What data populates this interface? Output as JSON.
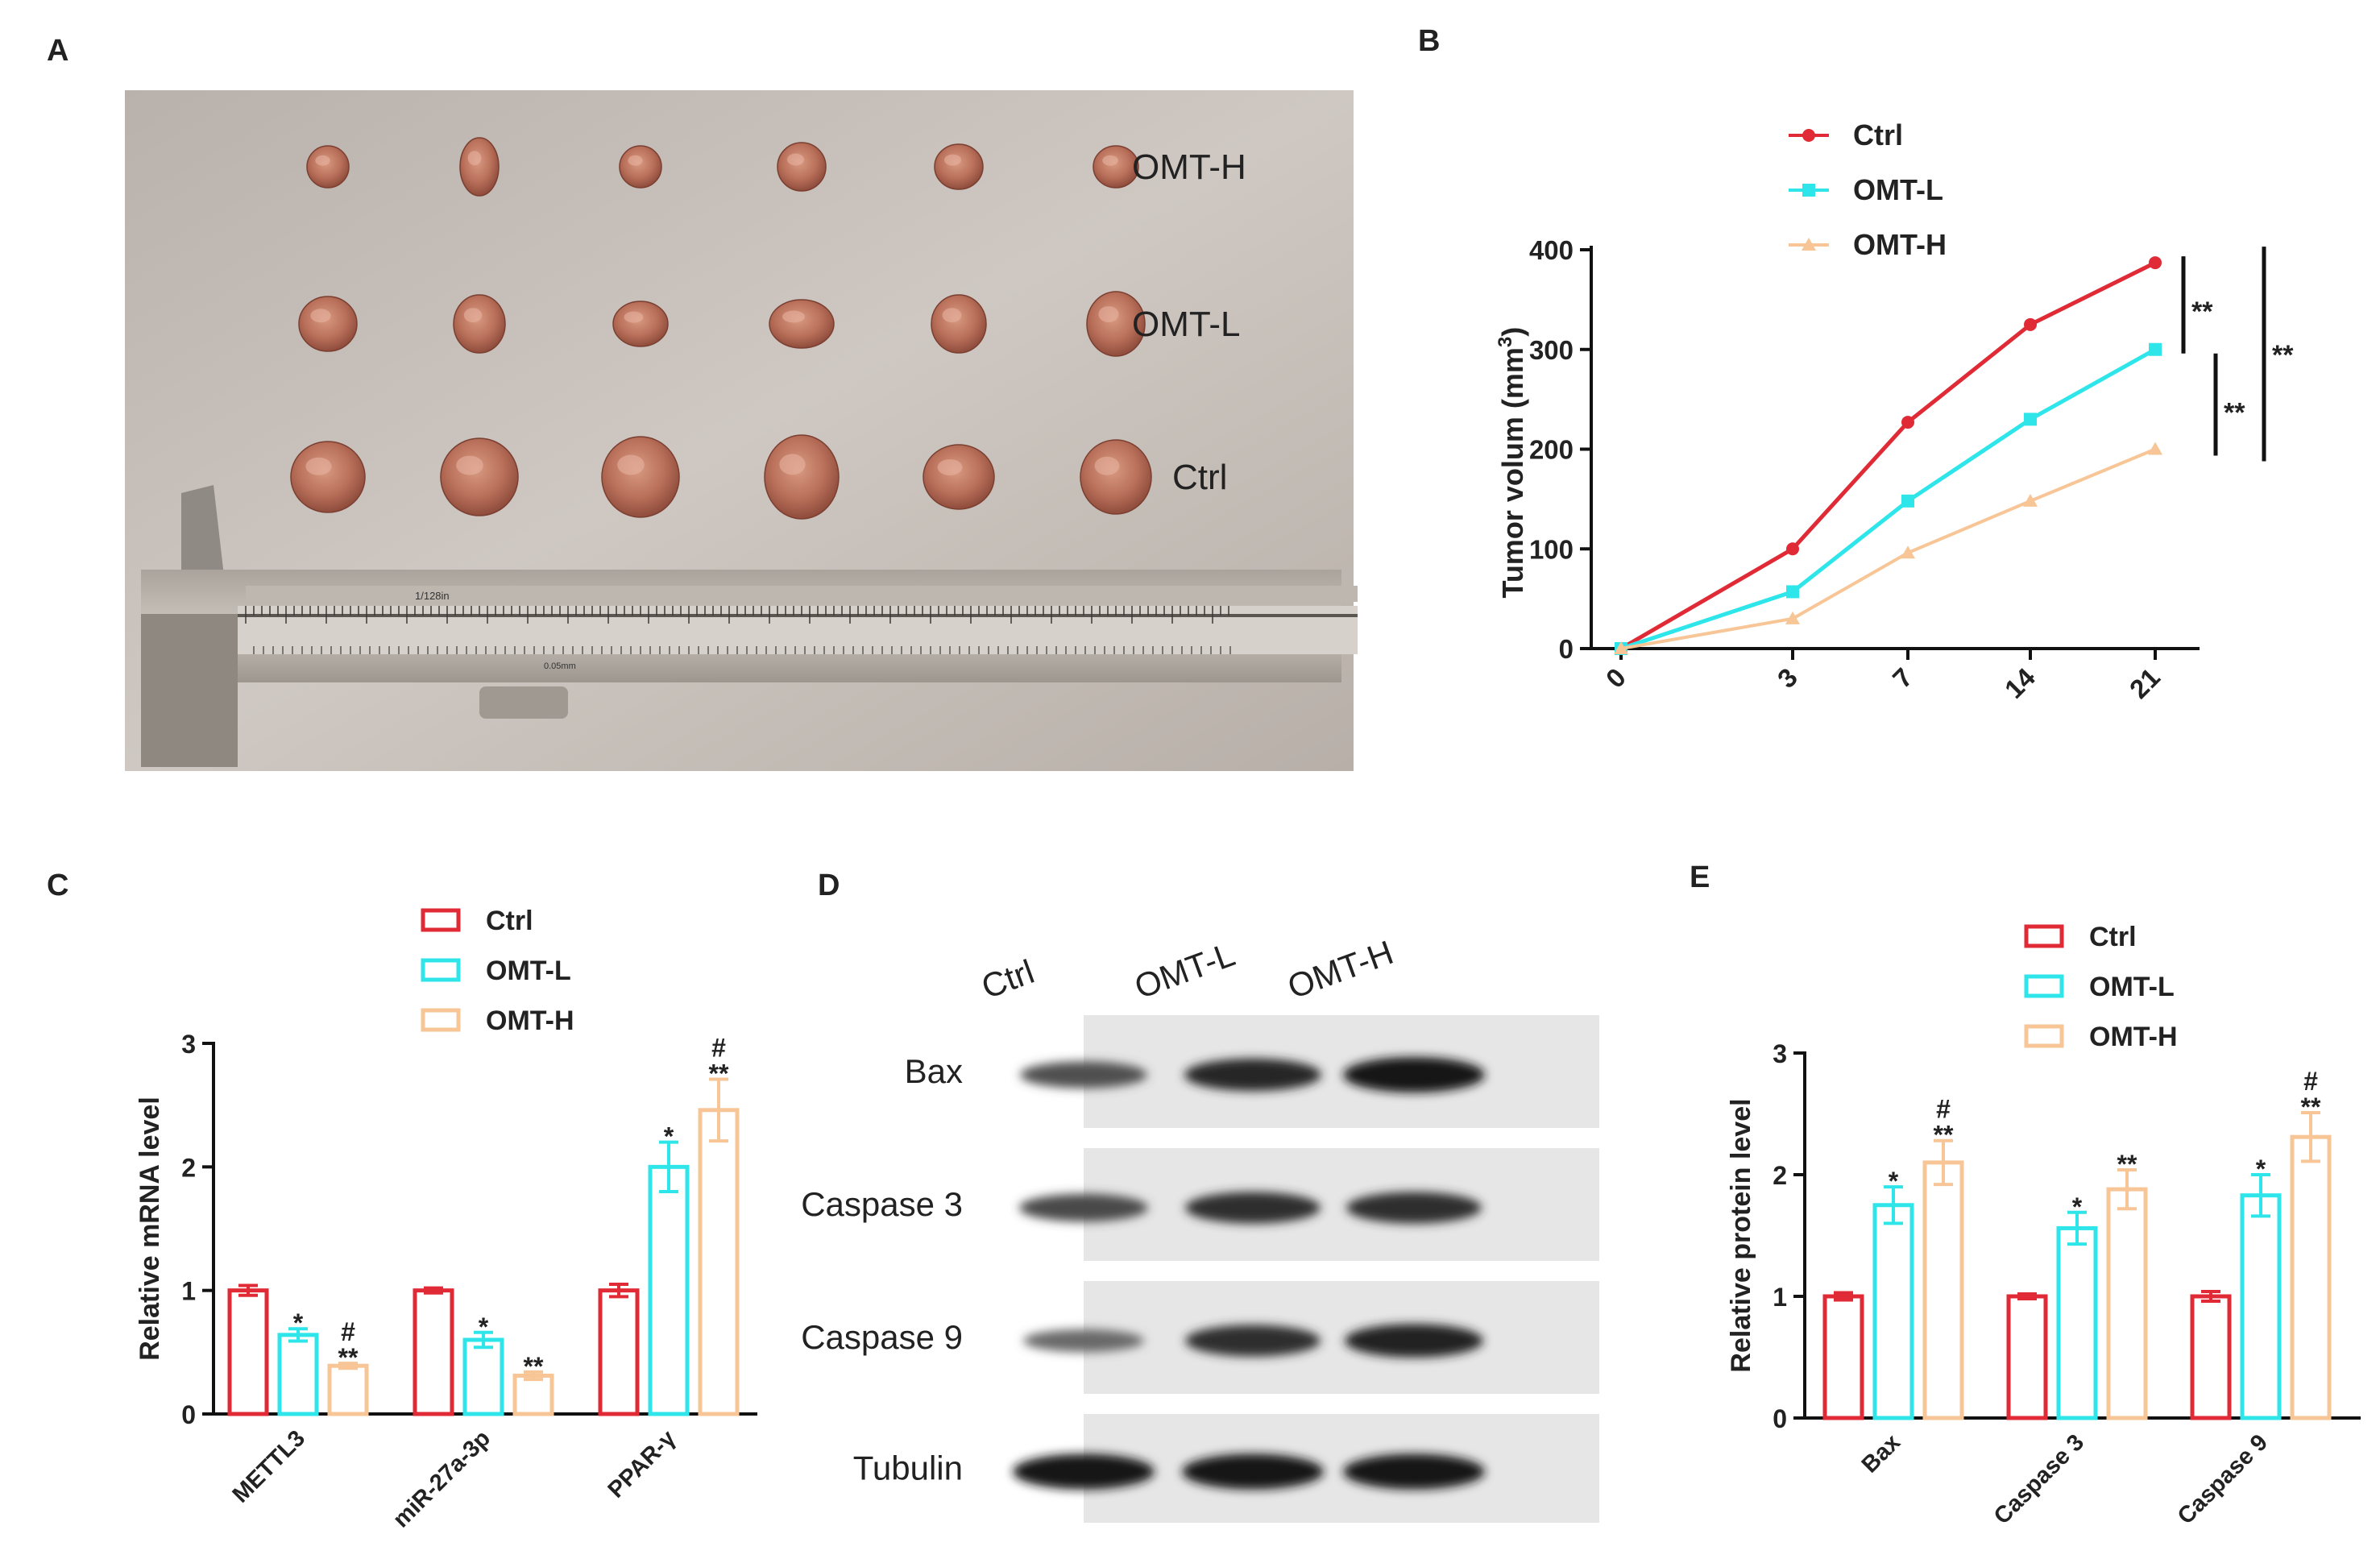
{
  "panels": {
    "a": "A",
    "b": "B",
    "c": "C",
    "d": "D",
    "e": "E"
  },
  "photo": {
    "row_labels": [
      "OMT-H",
      "OMT-L",
      "Ctrl"
    ],
    "caliper_text": "1/128in",
    "caliper_text2": "0.05mm"
  },
  "colors": {
    "ctrl": "#e02a35",
    "omt_l": "#2ee6ea",
    "omt_h": "#f7c596"
  },
  "chart_data": [
    {
      "type": "line",
      "ylabel_main": "Tumor volum (mm",
      "ylabel_sup": "3",
      "ylabel_end": ")",
      "categories": [
        "0",
        "3",
        "7",
        "14",
        "21"
      ],
      "ylim": [
        0,
        400
      ],
      "yticks": [
        "0",
        "100",
        "200",
        "300",
        "400"
      ],
      "series": [
        {
          "name": "Ctrl",
          "values": [
            0,
            100,
            227,
            325,
            387
          ]
        },
        {
          "name": "OMT-L",
          "values": [
            0,
            57,
            148,
            230,
            300
          ]
        },
        {
          "name": "OMT-H",
          "values": [
            0,
            30,
            96,
            148,
            200
          ]
        }
      ],
      "significance": [
        "**",
        "**",
        "**"
      ]
    },
    {
      "type": "bar",
      "ylabel": "Relative mRNA level",
      "categories": [
        "METTL3",
        "miR-27a-3p",
        "PPAR-γ"
      ],
      "ylim": [
        0,
        3
      ],
      "yticks": [
        "0",
        "1",
        "2",
        "3"
      ],
      "series": [
        {
          "name": "Ctrl",
          "values": [
            1.0,
            1.0,
            1.0
          ],
          "errors": [
            0.04,
            0.02,
            0.05
          ]
        },
        {
          "name": "OMT-L",
          "values": [
            0.64,
            0.6,
            2.0
          ],
          "errors": [
            0.05,
            0.06,
            0.2
          ]
        },
        {
          "name": "OMT-H",
          "values": [
            0.39,
            0.31,
            2.46
          ],
          "errors": [
            0.02,
            0.03,
            0.25
          ]
        }
      ],
      "annotations": [
        {
          "cat": 0,
          "series": 1,
          "text": [
            "*"
          ]
        },
        {
          "cat": 0,
          "series": 2,
          "text": [
            "#",
            "**"
          ]
        },
        {
          "cat": 1,
          "series": 1,
          "text": [
            "*"
          ]
        },
        {
          "cat": 1,
          "series": 2,
          "text": [
            "**"
          ]
        },
        {
          "cat": 2,
          "series": 1,
          "text": [
            "*"
          ]
        },
        {
          "cat": 2,
          "series": 2,
          "text": [
            "#",
            "**"
          ]
        }
      ]
    },
    {
      "type": "bar",
      "ylabel": "Relative protein level",
      "categories": [
        "Bax",
        "Caspase 3",
        "Caspase 9"
      ],
      "ylim": [
        0,
        3
      ],
      "yticks": [
        "0",
        "1",
        "2",
        "3"
      ],
      "series": [
        {
          "name": "Ctrl",
          "values": [
            1.0,
            1.0,
            1.0
          ],
          "errors": [
            0.03,
            0.02,
            0.04
          ]
        },
        {
          "name": "OMT-L",
          "values": [
            1.75,
            1.56,
            1.83
          ],
          "errors": [
            0.15,
            0.13,
            0.17
          ]
        },
        {
          "name": "OMT-H",
          "values": [
            2.1,
            1.88,
            2.31
          ],
          "errors": [
            0.18,
            0.16,
            0.2
          ]
        }
      ],
      "annotations": [
        {
          "cat": 0,
          "series": 1,
          "text": [
            "*"
          ]
        },
        {
          "cat": 0,
          "series": 2,
          "text": [
            "#",
            "**"
          ]
        },
        {
          "cat": 1,
          "series": 1,
          "text": [
            "*"
          ]
        },
        {
          "cat": 1,
          "series": 2,
          "text": [
            "**"
          ]
        },
        {
          "cat": 2,
          "series": 1,
          "text": [
            "*"
          ]
        },
        {
          "cat": 2,
          "series": 2,
          "text": [
            "#",
            "**"
          ]
        }
      ]
    }
  ],
  "blot": {
    "columns": [
      "Ctrl",
      "OMT-L",
      "OMT-H"
    ],
    "rows": [
      {
        "label": "Bax",
        "intensity": [
          0.55,
          0.85,
          1.0
        ]
      },
      {
        "label": "Caspase 3",
        "intensity": [
          0.6,
          0.8,
          0.8
        ]
      },
      {
        "label": "Caspase 9",
        "intensity": [
          0.35,
          0.8,
          0.9
        ]
      },
      {
        "label": "Tubulin",
        "intensity": [
          1.0,
          1.0,
          1.0
        ]
      }
    ]
  }
}
